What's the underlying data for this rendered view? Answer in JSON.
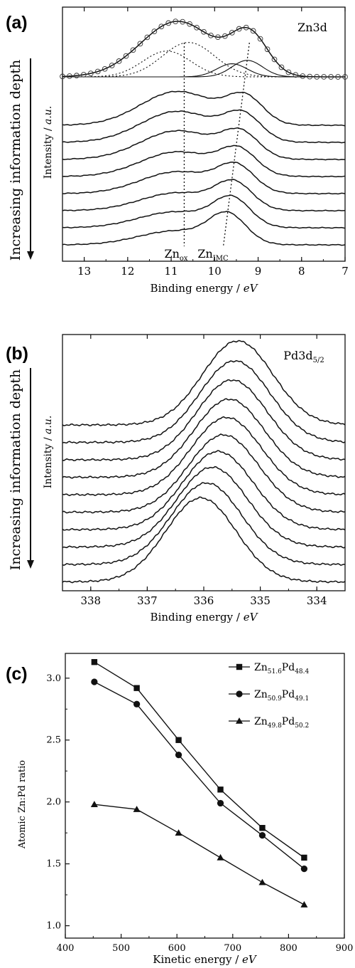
{
  "chart_data": [
    {
      "panel": "(a)",
      "type": "line",
      "title": "Zn3d",
      "side_label": "Increasing information depth",
      "xlabel": "Binding energy",
      "xlabel_unit": "eV",
      "ylabel": "Intensity",
      "ylabel_unit": "a.u.",
      "xlim": [
        13.5,
        7
      ],
      "x_reversed": true,
      "x_ticks": [
        "13",
        "12",
        "11",
        "10",
        "9",
        "8",
        "7"
      ],
      "grid": false,
      "annotations": [
        {
          "base": "Zn",
          "sub": "ox",
          "x": 10.7
        },
        {
          "base": "Zn",
          "sub": "IMC",
          "x": 9.8
        }
      ],
      "peak_guides": [
        {
          "name": "Zn_ox",
          "x_top": 10.7,
          "x_bottom": 10.7
        },
        {
          "name": "Zn_IMC",
          "x_top": 9.2,
          "x_bottom": 9.8
        }
      ],
      "fit_components": [
        {
          "name": "fit-ox-1",
          "center": 11.1,
          "amplitude": 0.75,
          "width": 0.55,
          "style": "dotted"
        },
        {
          "name": "fit-ox-2",
          "center": 10.6,
          "amplitude": 1.0,
          "width": 0.6,
          "style": "dotted"
        },
        {
          "name": "fit-imc-1",
          "center": 9.6,
          "amplitude": 0.38,
          "width": 0.35,
          "style": "solid"
        },
        {
          "name": "fit-imc-2",
          "center": 9.25,
          "amplitude": 0.48,
          "width": 0.35,
          "style": "solid"
        }
      ],
      "spectra": [
        {
          "ox": 1.0,
          "ox_pos": 10.85,
          "imc": 0.72,
          "imc_pos": 9.2,
          "baseline": 0.0,
          "markers": true
        },
        {
          "ox": 0.85,
          "ox_pos": 10.85,
          "imc": 0.65,
          "imc_pos": 9.3,
          "baseline": 0.06
        },
        {
          "ox": 0.78,
          "ox_pos": 10.85,
          "imc": 0.63,
          "imc_pos": 9.35,
          "baseline": 0.06
        },
        {
          "ox": 0.72,
          "ox_pos": 10.85,
          "imc": 0.6,
          "imc_pos": 9.4,
          "baseline": 0.06
        },
        {
          "ox": 0.62,
          "ox_pos": 10.85,
          "imc": 0.6,
          "imc_pos": 9.45,
          "baseline": 0.06
        },
        {
          "ox": 0.55,
          "ox_pos": 10.85,
          "imc": 0.62,
          "imc_pos": 9.5,
          "baseline": 0.06
        },
        {
          "ox": 0.45,
          "ox_pos": 10.85,
          "imc": 0.63,
          "imc_pos": 9.55,
          "baseline": 0.06
        },
        {
          "ox": 0.4,
          "ox_pos": 10.9,
          "imc": 0.68,
          "imc_pos": 9.6,
          "baseline": 0.06
        },
        {
          "ox": 0.35,
          "ox_pos": 10.9,
          "imc": 0.7,
          "imc_pos": 9.7,
          "baseline": 0.06
        }
      ]
    },
    {
      "panel": "(b)",
      "type": "line",
      "title": "Pd3d",
      "title_sub": "5/2",
      "side_label": "Increasing information depth",
      "xlabel": "Binding energy",
      "xlabel_unit": "eV",
      "ylabel": "Intensity",
      "ylabel_unit": "a.u.",
      "xlim": [
        338.5,
        333.5
      ],
      "x_reversed": true,
      "x_ticks": [
        "338",
        "337",
        "336",
        "335",
        "334"
      ],
      "grid": false,
      "spectra": [
        {
          "center": 335.4,
          "height": 1.0
        },
        {
          "center": 335.45,
          "height": 0.97
        },
        {
          "center": 335.5,
          "height": 0.95
        },
        {
          "center": 335.55,
          "height": 0.93
        },
        {
          "center": 335.6,
          "height": 0.92
        },
        {
          "center": 335.65,
          "height": 0.92
        },
        {
          "center": 335.75,
          "height": 0.93
        },
        {
          "center": 335.85,
          "height": 0.95
        },
        {
          "center": 335.95,
          "height": 0.97
        },
        {
          "center": 336.05,
          "height": 1.0
        }
      ]
    },
    {
      "panel": "(c)",
      "type": "line",
      "xlabel": "Kinetic energy",
      "xlabel_unit": "eV",
      "ylabel": "Atomic Zn:Pd ratio",
      "xlim": [
        400,
        900
      ],
      "ylim": [
        0.9,
        3.2
      ],
      "x_ticks": [
        400,
        500,
        600,
        700,
        800,
        900
      ],
      "y_ticks": [
        "1.0",
        "1.5",
        "2.0",
        "2.5",
        "3.0"
      ],
      "grid": false,
      "legend_position": "top-right",
      "x": [
        452,
        528,
        603,
        678,
        753,
        828
      ],
      "series": [
        {
          "name_base": "Zn",
          "name_sub1": "51.6",
          "name_mid": "Pd",
          "name_sub2": "48.4",
          "marker": "square",
          "values": [
            3.13,
            2.92,
            2.5,
            2.1,
            1.79,
            1.55
          ]
        },
        {
          "name_base": "Zn",
          "name_sub1": "50.9",
          "name_mid": "Pd",
          "name_sub2": "49.1",
          "marker": "circle",
          "values": [
            2.97,
            2.79,
            2.38,
            1.99,
            1.73,
            1.46
          ]
        },
        {
          "name_base": "Zn",
          "name_sub1": "49.8",
          "name_mid": "Pd",
          "name_sub2": "50.2",
          "marker": "triangle",
          "values": [
            1.98,
            1.94,
            1.75,
            1.55,
            1.35,
            1.17
          ]
        }
      ]
    }
  ]
}
